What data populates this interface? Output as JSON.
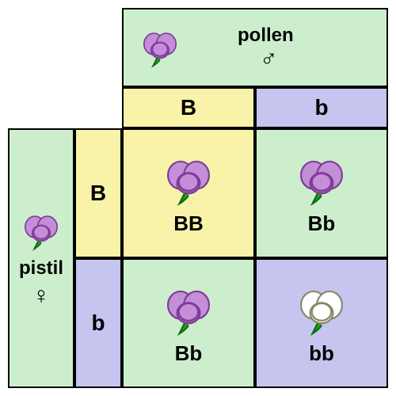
{
  "type": "punnett-square",
  "colors": {
    "green": "#cdeecd",
    "yellow": "#f8f3a9",
    "lavender": "#c6c5ef",
    "border": "#000000",
    "flower_purple_fill": "#c58ed8",
    "flower_purple_shadow": "#9b59b6",
    "flower_purple_stroke": "#7d3c98",
    "flower_white_fill": "#ffffff",
    "flower_white_shadow": "#f0ecd8",
    "flower_white_stroke": "#888866",
    "stem": "#1fa01f",
    "stem_stroke": "#0d6b0d"
  },
  "layout": {
    "total_size": 480,
    "col0_w": 84,
    "col1_w": 60,
    "col2_w": 168,
    "col3_w": 168,
    "row0_h": 100,
    "row1_h": 52,
    "row2_h": 164,
    "row3_h": 164
  },
  "labels": {
    "pollen": "pollen",
    "pistil": "pistil",
    "male_symbol": "♂",
    "female_symbol": "♀",
    "B": "B",
    "b": "b",
    "BB": "BB",
    "Bb": "Bb",
    "bb": "bb"
  },
  "cells": {
    "top_header": {
      "flower": "purple",
      "text_key": "pollen",
      "sym_key": "male_symbol",
      "bg": "green"
    },
    "left_header": {
      "flower": "purple",
      "text_key": "pistil",
      "sym_key": "female_symbol",
      "bg": "green"
    },
    "col_B": {
      "allele_key": "B",
      "bg": "yellow"
    },
    "col_b": {
      "allele_key": "b",
      "bg": "lavender"
    },
    "row_B": {
      "allele_key": "B",
      "bg": "yellow"
    },
    "row_b": {
      "allele_key": "b",
      "bg": "lavender"
    },
    "BB": {
      "flower": "purple",
      "geno_key": "BB",
      "bg": "yellow"
    },
    "Bb1": {
      "flower": "purple",
      "geno_key": "Bb",
      "bg": "green"
    },
    "Bb2": {
      "flower": "purple",
      "geno_key": "Bb",
      "bg": "green"
    },
    "bb": {
      "flower": "white",
      "geno_key": "bb",
      "bg": "lavender"
    }
  }
}
